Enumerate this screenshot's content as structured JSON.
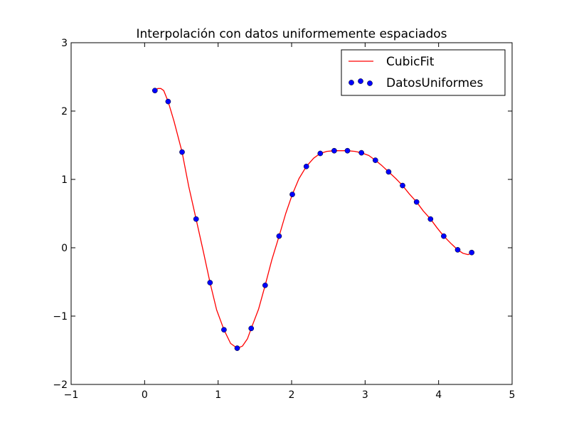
{
  "chart_data": {
    "type": "scatter",
    "title": "Interpolación con datos uniformemente espaciados",
    "xlabel": "",
    "ylabel": "",
    "xlim": [
      -1,
      5
    ],
    "ylim": [
      -2,
      3
    ],
    "xticks": [
      -1,
      0,
      1,
      2,
      3,
      4,
      5
    ],
    "yticks": [
      -2,
      -1,
      0,
      1,
      2,
      3
    ],
    "xtick_labels": [
      "−1",
      "0",
      "1",
      "2",
      "3",
      "4",
      "5"
    ],
    "ytick_labels": [
      "−2",
      "−1",
      "0",
      "1",
      "2",
      "3"
    ],
    "grid": false,
    "legend_position": "top-right",
    "series": [
      {
        "name": "CubicFit",
        "kind": "line",
        "color": "#ff0000",
        "x": [
          0.14,
          0.18,
          0.22,
          0.26,
          0.32,
          0.4,
          0.51,
          0.6,
          0.7,
          0.8,
          0.89,
          0.98,
          1.08,
          1.17,
          1.26,
          1.33,
          1.4,
          1.45,
          1.55,
          1.64,
          1.73,
          1.83,
          1.92,
          2.01,
          2.1,
          2.2,
          2.3,
          2.39,
          2.48,
          2.58,
          2.67,
          2.76,
          2.86,
          2.95,
          3.05,
          3.14,
          3.23,
          3.32,
          3.42,
          3.51,
          3.6,
          3.7,
          3.79,
          3.89,
          3.98,
          4.07,
          4.17,
          4.26,
          4.33,
          4.4,
          4.45
        ],
        "y": [
          2.3,
          2.33,
          2.33,
          2.3,
          2.14,
          1.85,
          1.4,
          0.9,
          0.42,
          -0.06,
          -0.51,
          -0.91,
          -1.2,
          -1.4,
          -1.47,
          -1.44,
          -1.33,
          -1.18,
          -0.9,
          -0.55,
          -0.18,
          0.17,
          0.5,
          0.78,
          1.01,
          1.19,
          1.31,
          1.38,
          1.41,
          1.42,
          1.42,
          1.42,
          1.41,
          1.39,
          1.35,
          1.28,
          1.2,
          1.11,
          1.01,
          0.91,
          0.79,
          0.67,
          0.54,
          0.42,
          0.29,
          0.17,
          0.06,
          -0.03,
          -0.08,
          -0.1,
          -0.08
        ]
      },
      {
        "name": "DatosUniformes",
        "kind": "scatter",
        "color": "#0000ff",
        "x": [
          0.14,
          0.32,
          0.51,
          0.7,
          0.89,
          1.08,
          1.26,
          1.45,
          1.64,
          1.83,
          2.01,
          2.2,
          2.39,
          2.58,
          2.76,
          2.95,
          3.14,
          3.32,
          3.51,
          3.7,
          3.89,
          4.07,
          4.26,
          4.45
        ],
        "y": [
          2.3,
          2.14,
          1.4,
          0.42,
          -0.51,
          -1.2,
          -1.47,
          -1.18,
          -0.55,
          0.17,
          0.78,
          1.19,
          1.38,
          1.42,
          1.42,
          1.39,
          1.28,
          1.11,
          0.91,
          0.67,
          0.42,
          0.17,
          -0.03,
          -0.07
        ]
      }
    ]
  }
}
